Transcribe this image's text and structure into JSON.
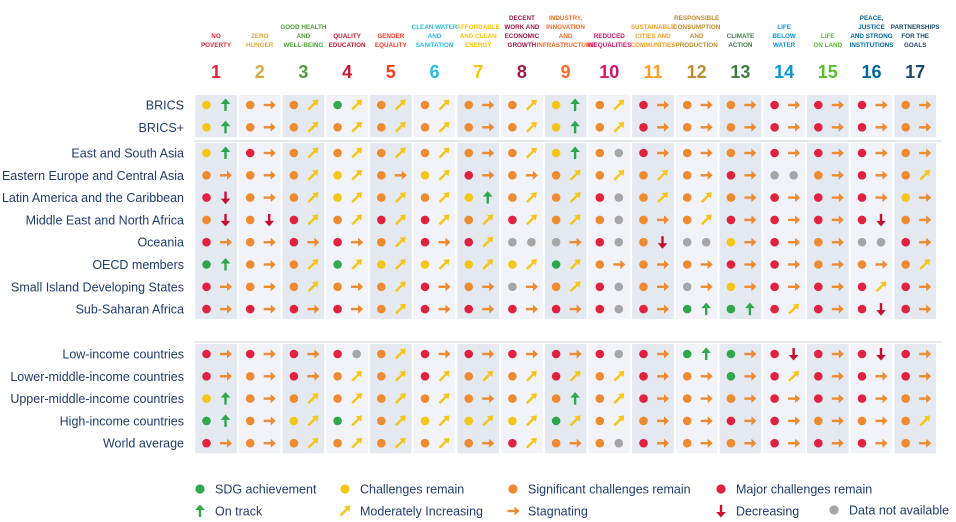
{
  "chart_data": {
    "type": "table",
    "goals": [
      {
        "num": "1",
        "name": [
          "NO",
          "POVERTY"
        ],
        "color": "#e5243b"
      },
      {
        "num": "2",
        "name": [
          "ZERO",
          "HUNGER"
        ],
        "color": "#dda63a"
      },
      {
        "num": "3",
        "name": [
          "GOOD HEALTH",
          "AND",
          "WELL-BEING"
        ],
        "color": "#4c9f38"
      },
      {
        "num": "4",
        "name": [
          "QUALITY",
          "EDUCATION"
        ],
        "color": "#c5192d"
      },
      {
        "num": "5",
        "name": [
          "GENDER",
          "EQUALITY"
        ],
        "color": "#ff3a21"
      },
      {
        "num": "6",
        "name": [
          "CLEAN WATER",
          "AND",
          "SANITATION"
        ],
        "color": "#26bde2"
      },
      {
        "num": "7",
        "name": [
          "AFFORDABLE",
          "AND CLEAN",
          "ENERGY"
        ],
        "color": "#fcc30b"
      },
      {
        "num": "8",
        "name": [
          "DECENT",
          "WORK AND",
          "ECONOMIC",
          "GROWTH"
        ],
        "color": "#a21942"
      },
      {
        "num": "9",
        "name": [
          "INDUSTRY,",
          "INNOVATION",
          "AND",
          "INFRASTRUCTURE"
        ],
        "color": "#fd6925"
      },
      {
        "num": "10",
        "name": [
          "REDUCED",
          "INEQUALITIES"
        ],
        "color": "#dd1367"
      },
      {
        "num": "11",
        "name": [
          "SUSTAINABLE",
          "CITIES AND",
          "COMMUNITIES"
        ],
        "color": "#fd9d24"
      },
      {
        "num": "12",
        "name": [
          "RESPONSIBLE",
          "CONSUMPTION",
          "AND",
          "PRODUCTION"
        ],
        "color": "#bf8b2e"
      },
      {
        "num": "13",
        "name": [
          "CLIMATE",
          "ACTION"
        ],
        "color": "#3f7e44"
      },
      {
        "num": "14",
        "name": [
          "LIFE",
          "BELOW",
          "WATER"
        ],
        "color": "#0a97d9"
      },
      {
        "num": "15",
        "name": [
          "LIFE",
          "ON LAND"
        ],
        "color": "#56c02b"
      },
      {
        "num": "16",
        "name": [
          "PEACE,",
          "JUSTICE",
          "AND STRONG",
          "INSTITUTIONS"
        ],
        "color": "#00689d"
      },
      {
        "num": "17",
        "name": [
          "PARTNERSHIPS",
          "FOR THE",
          "GOALS"
        ],
        "color": "#19486a"
      }
    ],
    "status_legend": {
      "G": {
        "label": "SDG achievement",
        "color": "#2ea84a"
      },
      "Y": {
        "label": "Challenges remain",
        "color": "#f5c518"
      },
      "O": {
        "label": "Significant challenges remain",
        "color": "#ee8a2f"
      },
      "R": {
        "label": "Major challenges remain",
        "color": "#e0223e"
      },
      "N": {
        "label": "Data not available",
        "color": "#a6a6a6"
      }
    },
    "trend_legend": {
      "U": {
        "label": "On track",
        "color": "#2ea84a"
      },
      "M": {
        "label": "Moderately Increasing",
        "color": "#f5c518"
      },
      "S": {
        "label": "Stagnating",
        "color": "#ee8a2f"
      },
      "D": {
        "label": "Decreasing",
        "color": "#c8102e"
      }
    },
    "legend_order": [
      "G",
      "Y",
      "O",
      "R",
      "U",
      "M",
      "S",
      "D",
      "N"
    ],
    "groups": [
      {
        "rows": [
          {
            "label": "BRICS",
            "cells": [
              "YU",
              "OS",
              "OM",
              "GM",
              "OM",
              "OM",
              "OS",
              "OM",
              "YU",
              "OM",
              "RS",
              "OS",
              "OS",
              "RS",
              "RS",
              "RS",
              "OS"
            ]
          },
          {
            "label": "BRICS+",
            "cells": [
              "YU",
              "OS",
              "OM",
              "OM",
              "OM",
              "OM",
              "OS",
              "OM",
              "YU",
              "OM",
              "RS",
              "OS",
              "OS",
              "RS",
              "RS",
              "RS",
              "OS"
            ]
          }
        ]
      },
      {
        "rows": [
          {
            "label": "East and South Asia",
            "cells": [
              "YU",
              "RS",
              "OM",
              "OM",
              "OM",
              "OM",
              "OS",
              "OM",
              "YU",
              "ON",
              "RS",
              "OS",
              "OS",
              "RS",
              "RS",
              "RS",
              "OS"
            ]
          },
          {
            "label": "Eastern Europe and Central Asia",
            "cells": [
              "OS",
              "OS",
              "OM",
              "YM",
              "OS",
              "YM",
              "RS",
              "OS",
              "OM",
              "OM",
              "OM",
              "OS",
              "RS",
              "NN",
              "OS",
              "RS",
              "OM"
            ]
          },
          {
            "label": "Latin America and the Caribbean",
            "cells": [
              "RD",
              "OS",
              "OM",
              "YM",
              "OM",
              "OM",
              "YU",
              "OM",
              "OM",
              "RN",
              "OM",
              "OM",
              "OS",
              "RS",
              "RS",
              "RS",
              "YS"
            ]
          },
          {
            "label": "Middle East and North Africa",
            "cells": [
              "OD",
              "OD",
              "RM",
              "OM",
              "RM",
              "RM",
              "OM",
              "RM",
              "OM",
              "ON",
              "OS",
              "OM",
              "RS",
              "RS",
              "RS",
              "RD",
              "OS"
            ]
          },
          {
            "label": "Oceania",
            "cells": [
              "RS",
              "OS",
              "RS",
              "RS",
              "OM",
              "RS",
              "RM",
              "NN",
              "NS",
              "RN",
              "OD",
              "NN",
              "YS",
              "RS",
              "OS",
              "NN",
              "RS"
            ]
          },
          {
            "label": "OECD members",
            "cells": [
              "GU",
              "OS",
              "OM",
              "GM",
              "YM",
              "YM",
              "YM",
              "YM",
              "GM",
              "OS",
              "OS",
              "OS",
              "RS",
              "RS",
              "OS",
              "OS",
              "OM"
            ]
          },
          {
            "label": "Small Island Developing States",
            "cells": [
              "RS",
              "OS",
              "OM",
              "OS",
              "OM",
              "RS",
              "OS",
              "NS",
              "OM",
              "RN",
              "OS",
              "NS",
              "YS",
              "RS",
              "RS",
              "RM",
              "RS"
            ]
          },
          {
            "label": "Sub-Saharan Africa",
            "cells": [
              "RS",
              "RS",
              "RS",
              "RS",
              "OM",
              "RS",
              "RS",
              "RS",
              "RS",
              "RN",
              "RS",
              "GU",
              "GU",
              "RM",
              "RS",
              "RD",
              "RS"
            ]
          }
        ]
      },
      {
        "rows": [
          {
            "label": "Low-income countries",
            "cells": [
              "RS",
              "RS",
              "RS",
              "RN",
              "OM",
              "RS",
              "RS",
              "RS",
              "RS",
              "RN",
              "RS",
              "GU",
              "GS",
              "RD",
              "RS",
              "RD",
              "RS"
            ]
          },
          {
            "label": "Lower-middle-income countries",
            "cells": [
              "RS",
              "OS",
              "RS",
              "OM",
              "OM",
              "RM",
              "OM",
              "OM",
              "RM",
              "OM",
              "RS",
              "OS",
              "GS",
              "RM",
              "RS",
              "RS",
              "RS"
            ]
          },
          {
            "label": "Upper-middle-income countries",
            "cells": [
              "YU",
              "OS",
              "OM",
              "OM",
              "OM",
              "OM",
              "OS",
              "OM",
              "OU",
              "OM",
              "RS",
              "OS",
              "OS",
              "RS",
              "RS",
              "RS",
              "OS"
            ]
          },
          {
            "label": "High-income countries",
            "cells": [
              "GU",
              "OS",
              "YM",
              "GM",
              "OM",
              "YM",
              "YM",
              "YM",
              "GM",
              "OM",
              "OS",
              "OS",
              "RS",
              "RS",
              "OS",
              "OS",
              "OM"
            ]
          },
          {
            "label": "World average",
            "cells": [
              "RS",
              "OS",
              "OM",
              "OM",
              "OM",
              "OM",
              "OS",
              "RM",
              "OS",
              "ON",
              "RS",
              "OS",
              "OS",
              "RS",
              "RS",
              "RS",
              "OS"
            ]
          }
        ]
      }
    ]
  }
}
